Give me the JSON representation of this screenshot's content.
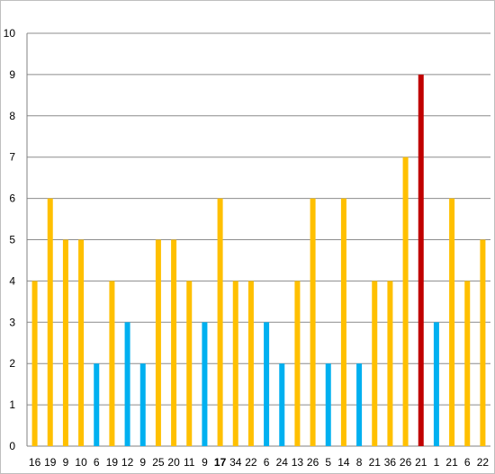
{
  "chart_data": {
    "type": "bar",
    "title": "",
    "xlabel": "",
    "ylabel": "",
    "ylim": [
      0,
      10
    ],
    "yticks": [
      0,
      1,
      2,
      3,
      4,
      5,
      6,
      7,
      8,
      9,
      10
    ],
    "grid": "horizontal",
    "legend": "none",
    "colors": {
      "orange": "#ffc000",
      "blue": "#00b0f0",
      "red": "#c00000"
    },
    "categories": [
      "16",
      "19",
      "9",
      "10",
      "6",
      "19",
      "12",
      "9",
      "25",
      "20",
      "11",
      "9",
      "17",
      "34",
      "22",
      "6",
      "24",
      "13",
      "26",
      "5",
      "14",
      "8",
      "21",
      "36",
      "26",
      "21",
      "1",
      "21",
      "6",
      "22"
    ],
    "bold_categories": [
      12
    ],
    "values": [
      4,
      6,
      5,
      5,
      2,
      4,
      3,
      2,
      5,
      5,
      4,
      3,
      6,
      4,
      4,
      3,
      2,
      4,
      6,
      2,
      6,
      2,
      4,
      4,
      7,
      9,
      3,
      6,
      4,
      5
    ],
    "bar_colors": [
      "orange",
      "orange",
      "orange",
      "orange",
      "blue",
      "orange",
      "blue",
      "blue",
      "orange",
      "orange",
      "orange",
      "blue",
      "orange",
      "orange",
      "orange",
      "blue",
      "blue",
      "orange",
      "orange",
      "blue",
      "orange",
      "blue",
      "orange",
      "orange",
      "orange",
      "red",
      "blue",
      "orange",
      "orange",
      "orange"
    ]
  }
}
